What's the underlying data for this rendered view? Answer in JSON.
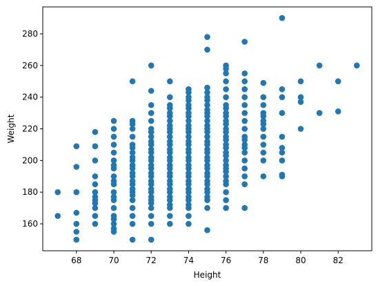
{
  "chart_data": {
    "type": "scatter",
    "title": "",
    "xlabel": "Height",
    "ylabel": "Weight",
    "xlim": [
      66.2,
      83.8
    ],
    "ylim": [
      143,
      297
    ],
    "xticks": [
      68,
      70,
      72,
      74,
      76,
      78,
      80,
      82
    ],
    "yticks": [
      160,
      180,
      200,
      220,
      240,
      260,
      280
    ],
    "grid": false,
    "legend": "none",
    "marker_color": "#1f77b4",
    "points": [
      [
        67,
        165
      ],
      [
        67,
        180
      ],
      [
        68,
        150
      ],
      [
        68,
        155
      ],
      [
        68,
        160
      ],
      [
        68,
        167
      ],
      [
        68,
        180
      ],
      [
        68,
        196
      ],
      [
        68,
        209
      ],
      [
        69,
        160
      ],
      [
        69,
        165
      ],
      [
        69,
        170
      ],
      [
        69,
        173
      ],
      [
        69,
        175
      ],
      [
        69,
        177
      ],
      [
        69,
        180
      ],
      [
        69,
        185
      ],
      [
        69,
        190
      ],
      [
        69,
        200
      ],
      [
        69,
        209
      ],
      [
        69,
        218
      ],
      [
        70,
        155
      ],
      [
        70,
        157
      ],
      [
        70,
        160
      ],
      [
        70,
        163
      ],
      [
        70,
        165
      ],
      [
        70,
        170
      ],
      [
        70,
        175
      ],
      [
        70,
        177
      ],
      [
        70,
        180
      ],
      [
        70,
        185
      ],
      [
        70,
        187
      ],
      [
        70,
        190
      ],
      [
        70,
        195
      ],
      [
        70,
        197
      ],
      [
        70,
        200
      ],
      [
        70,
        205
      ],
      [
        70,
        210
      ],
      [
        70,
        215
      ],
      [
        70,
        220
      ],
      [
        70,
        225
      ],
      [
        71,
        150
      ],
      [
        71,
        160
      ],
      [
        71,
        165
      ],
      [
        71,
        170
      ],
      [
        71,
        175
      ],
      [
        71,
        178
      ],
      [
        71,
        180
      ],
      [
        71,
        182
      ],
      [
        71,
        185
      ],
      [
        71,
        187
      ],
      [
        71,
        190
      ],
      [
        71,
        192
      ],
      [
        71,
        195
      ],
      [
        71,
        197
      ],
      [
        71,
        200
      ],
      [
        71,
        202
      ],
      [
        71,
        205
      ],
      [
        71,
        208
      ],
      [
        71,
        210
      ],
      [
        71,
        215
      ],
      [
        71,
        220
      ],
      [
        71,
        223
      ],
      [
        71,
        225
      ],
      [
        71,
        250
      ],
      [
        72,
        150
      ],
      [
        72,
        160
      ],
      [
        72,
        165
      ],
      [
        72,
        170
      ],
      [
        72,
        173
      ],
      [
        72,
        175
      ],
      [
        72,
        177
      ],
      [
        72,
        180
      ],
      [
        72,
        182
      ],
      [
        72,
        185
      ],
      [
        72,
        187
      ],
      [
        72,
        190
      ],
      [
        72,
        192
      ],
      [
        72,
        195
      ],
      [
        72,
        197
      ],
      [
        72,
        200
      ],
      [
        72,
        202
      ],
      [
        72,
        205
      ],
      [
        72,
        207
      ],
      [
        72,
        210
      ],
      [
        72,
        212
      ],
      [
        72,
        215
      ],
      [
        72,
        218
      ],
      [
        72,
        220
      ],
      [
        72,
        225
      ],
      [
        72,
        230
      ],
      [
        72,
        235
      ],
      [
        72,
        244
      ],
      [
        72,
        260
      ],
      [
        73,
        160
      ],
      [
        73,
        165
      ],
      [
        73,
        170
      ],
      [
        73,
        172
      ],
      [
        73,
        175
      ],
      [
        73,
        177
      ],
      [
        73,
        180
      ],
      [
        73,
        182
      ],
      [
        73,
        185
      ],
      [
        73,
        187
      ],
      [
        73,
        190
      ],
      [
        73,
        192
      ],
      [
        73,
        195
      ],
      [
        73,
        197
      ],
      [
        73,
        200
      ],
      [
        73,
        202
      ],
      [
        73,
        205
      ],
      [
        73,
        207
      ],
      [
        73,
        210
      ],
      [
        73,
        212
      ],
      [
        73,
        215
      ],
      [
        73,
        218
      ],
      [
        73,
        220
      ],
      [
        73,
        222
      ],
      [
        73,
        225
      ],
      [
        73,
        228
      ],
      [
        73,
        230
      ],
      [
        73,
        233
      ],
      [
        73,
        235
      ],
      [
        73,
        240
      ],
      [
        73,
        250
      ],
      [
        74,
        160
      ],
      [
        74,
        165
      ],
      [
        74,
        170
      ],
      [
        74,
        172
      ],
      [
        74,
        175
      ],
      [
        74,
        177
      ],
      [
        74,
        180
      ],
      [
        74,
        182
      ],
      [
        74,
        185
      ],
      [
        74,
        187
      ],
      [
        74,
        190
      ],
      [
        74,
        192
      ],
      [
        74,
        195
      ],
      [
        74,
        197
      ],
      [
        74,
        200
      ],
      [
        74,
        202
      ],
      [
        74,
        205
      ],
      [
        74,
        207
      ],
      [
        74,
        210
      ],
      [
        74,
        212
      ],
      [
        74,
        215
      ],
      [
        74,
        218
      ],
      [
        74,
        220
      ],
      [
        74,
        222
      ],
      [
        74,
        225
      ],
      [
        74,
        228
      ],
      [
        74,
        230
      ],
      [
        74,
        233
      ],
      [
        74,
        235
      ],
      [
        74,
        238
      ],
      [
        74,
        240
      ],
      [
        74,
        243
      ],
      [
        74,
        245
      ],
      [
        75,
        156
      ],
      [
        75,
        170
      ],
      [
        75,
        175
      ],
      [
        75,
        177
      ],
      [
        75,
        180
      ],
      [
        75,
        182
      ],
      [
        75,
        185
      ],
      [
        75,
        187
      ],
      [
        75,
        190
      ],
      [
        75,
        192
      ],
      [
        75,
        195
      ],
      [
        75,
        197
      ],
      [
        75,
        200
      ],
      [
        75,
        202
      ],
      [
        75,
        205
      ],
      [
        75,
        207
      ],
      [
        75,
        210
      ],
      [
        75,
        212
      ],
      [
        75,
        215
      ],
      [
        75,
        218
      ],
      [
        75,
        220
      ],
      [
        75,
        222
      ],
      [
        75,
        225
      ],
      [
        75,
        228
      ],
      [
        75,
        230
      ],
      [
        75,
        232
      ],
      [
        75,
        235
      ],
      [
        75,
        238
      ],
      [
        75,
        240
      ],
      [
        75,
        243
      ],
      [
        75,
        246
      ],
      [
        75,
        270
      ],
      [
        75,
        278
      ],
      [
        76,
        170
      ],
      [
        76,
        175
      ],
      [
        76,
        180
      ],
      [
        76,
        185
      ],
      [
        76,
        187
      ],
      [
        76,
        190
      ],
      [
        76,
        193
      ],
      [
        76,
        195
      ],
      [
        76,
        197
      ],
      [
        76,
        200
      ],
      [
        76,
        203
      ],
      [
        76,
        205
      ],
      [
        76,
        208
      ],
      [
        76,
        210
      ],
      [
        76,
        213
      ],
      [
        76,
        215
      ],
      [
        76,
        218
      ],
      [
        76,
        220
      ],
      [
        76,
        223
      ],
      [
        76,
        225
      ],
      [
        76,
        228
      ],
      [
        76,
        230
      ],
      [
        76,
        233
      ],
      [
        76,
        235
      ],
      [
        76,
        240
      ],
      [
        76,
        245
      ],
      [
        76,
        250
      ],
      [
        76,
        255
      ],
      [
        76,
        258
      ],
      [
        76,
        260
      ],
      [
        77,
        170
      ],
      [
        77,
        185
      ],
      [
        77,
        190
      ],
      [
        77,
        195
      ],
      [
        77,
        200
      ],
      [
        77,
        205
      ],
      [
        77,
        208
      ],
      [
        77,
        210
      ],
      [
        77,
        213
      ],
      [
        77,
        215
      ],
      [
        77,
        220
      ],
      [
        77,
        225
      ],
      [
        77,
        230
      ],
      [
        77,
        235
      ],
      [
        77,
        240
      ],
      [
        77,
        245
      ],
      [
        77,
        250
      ],
      [
        77,
        255
      ],
      [
        77,
        275
      ],
      [
        78,
        190
      ],
      [
        78,
        200
      ],
      [
        78,
        205
      ],
      [
        78,
        210
      ],
      [
        78,
        215
      ],
      [
        78,
        220
      ],
      [
        78,
        223
      ],
      [
        78,
        225
      ],
      [
        78,
        228
      ],
      [
        78,
        230
      ],
      [
        78,
        235
      ],
      [
        78,
        240
      ],
      [
        78,
        249
      ],
      [
        79,
        190
      ],
      [
        79,
        191
      ],
      [
        79,
        200
      ],
      [
        79,
        205
      ],
      [
        79,
        208
      ],
      [
        79,
        215
      ],
      [
        79,
        230
      ],
      [
        79,
        240
      ],
      [
        79,
        245
      ],
      [
        79,
        290
      ],
      [
        80,
        220
      ],
      [
        80,
        237
      ],
      [
        80,
        240
      ],
      [
        80,
        250
      ],
      [
        81,
        230
      ],
      [
        81,
        260
      ],
      [
        82,
        231
      ],
      [
        82,
        250
      ],
      [
        83,
        260
      ]
    ]
  }
}
